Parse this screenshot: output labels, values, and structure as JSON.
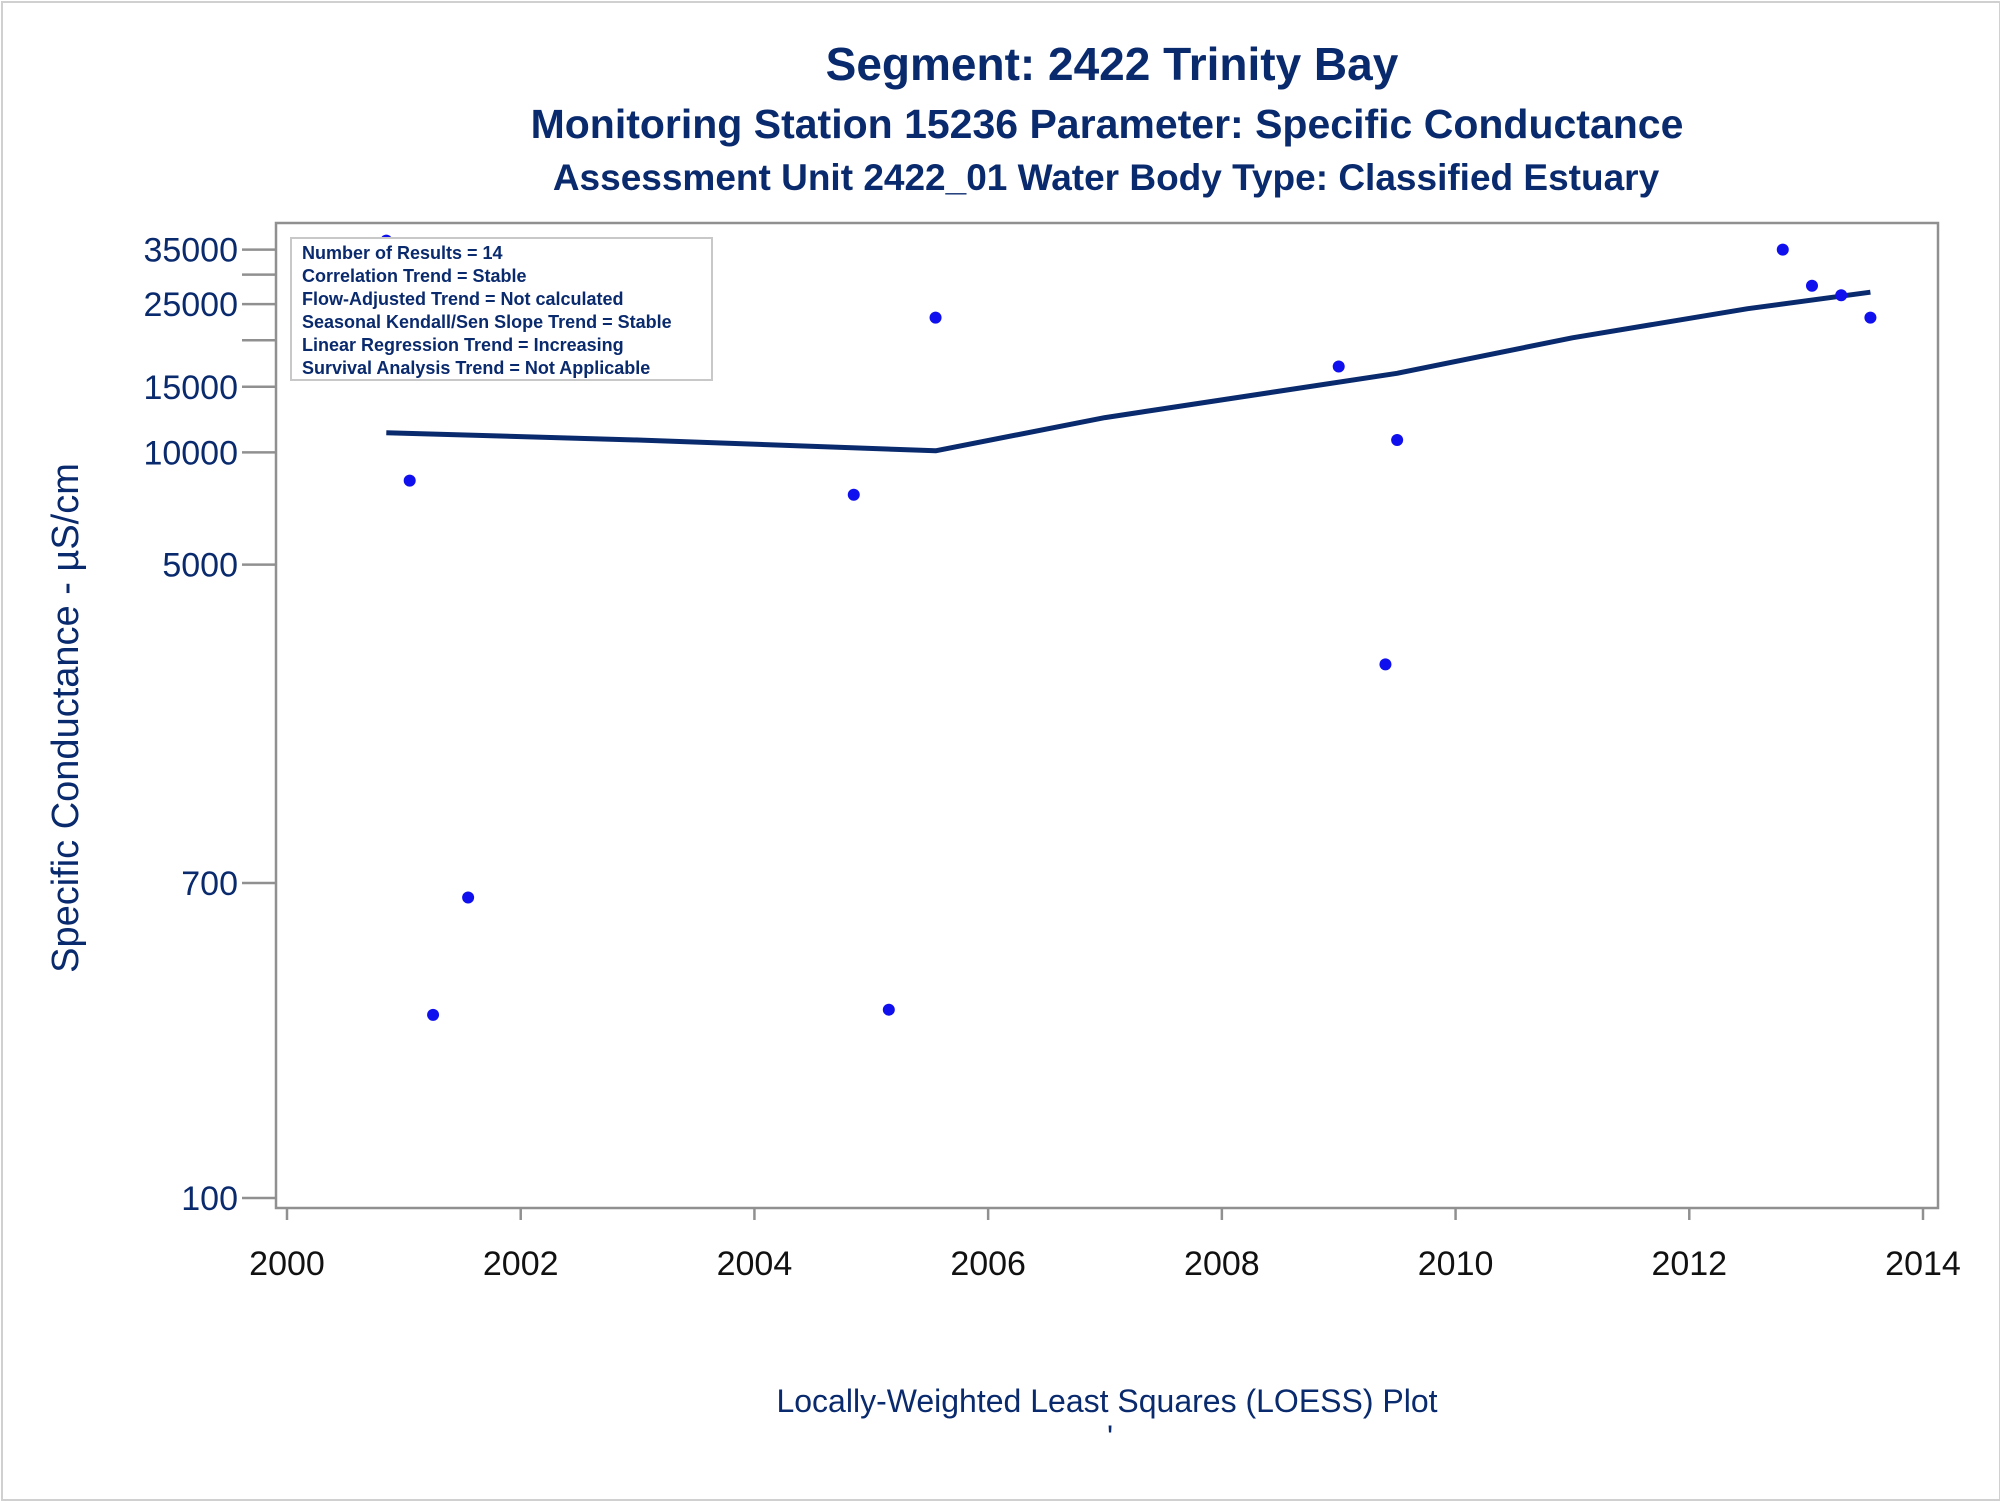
{
  "chart_data": {
    "type": "scatter",
    "title": "Segment: 2422  Trinity Bay",
    "subtitle": "Monitoring Station 15236 Parameter: Specific Conductance",
    "subtitle2": "Assessment Unit 2422_01   Water Body Type: Classified Estuary",
    "xlabel": "Locally-Weighted Least Squares (LOESS) Plot",
    "ylabel": "Specific Conductance -  µS/cm",
    "footnote": "'",
    "xlim": [
      2000,
      2014
    ],
    "ylim": [
      100,
      40000
    ],
    "yscale": "log",
    "x_ticks": [
      2000,
      2002,
      2004,
      2006,
      2008,
      2010,
      2012,
      2014
    ],
    "y_tick_labels": [
      {
        "value": 35000,
        "label": "35000"
      },
      {
        "value": 25000,
        "label": "25000"
      },
      {
        "value": 15000,
        "label": "15000"
      },
      {
        "value": 10000,
        "label": "10000"
      },
      {
        "value": 5000,
        "label": "5000"
      },
      {
        "value": 700,
        "label": "700"
      },
      {
        "value": 100,
        "label": "100"
      }
    ],
    "y_minor_ticks": [
      30000,
      20000
    ],
    "grid": false,
    "inset_box": {
      "placement": "top-left",
      "lines": [
        "Number of Results = 14",
        "Correlation Trend = Stable",
        "Flow-Adjusted Trend = Not calculated",
        "Seasonal Kendall/Sen Slope Trend = Stable",
        "Linear Regression Trend = Increasing",
        "Survival Analysis Trend = Not Applicable"
      ]
    },
    "series": [
      {
        "kind": "points",
        "color": "#1010ee",
        "points": [
          {
            "x": 2000.85,
            "y": 37000
          },
          {
            "x": 2001.05,
            "y": 8400
          },
          {
            "x": 2001.25,
            "y": 310
          },
          {
            "x": 2001.55,
            "y": 640
          },
          {
            "x": 2004.85,
            "y": 7700
          },
          {
            "x": 2005.15,
            "y": 320
          },
          {
            "x": 2005.55,
            "y": 23000
          },
          {
            "x": 2009.0,
            "y": 17000
          },
          {
            "x": 2009.4,
            "y": 2700
          },
          {
            "x": 2009.5,
            "y": 10800
          },
          {
            "x": 2012.8,
            "y": 35000
          },
          {
            "x": 2013.05,
            "y": 28000
          },
          {
            "x": 2013.3,
            "y": 26400
          },
          {
            "x": 2013.55,
            "y": 23000
          }
        ]
      },
      {
        "kind": "line",
        "color": "#0a2a6e",
        "points": [
          {
            "x": 2000.85,
            "y": 11300
          },
          {
            "x": 2003.0,
            "y": 10800
          },
          {
            "x": 2005.55,
            "y": 10100
          },
          {
            "x": 2007.0,
            "y": 12400
          },
          {
            "x": 2009.5,
            "y": 16300
          },
          {
            "x": 2011.0,
            "y": 20300
          },
          {
            "x": 2012.5,
            "y": 24300
          },
          {
            "x": 2013.55,
            "y": 26900
          }
        ]
      }
    ]
  }
}
